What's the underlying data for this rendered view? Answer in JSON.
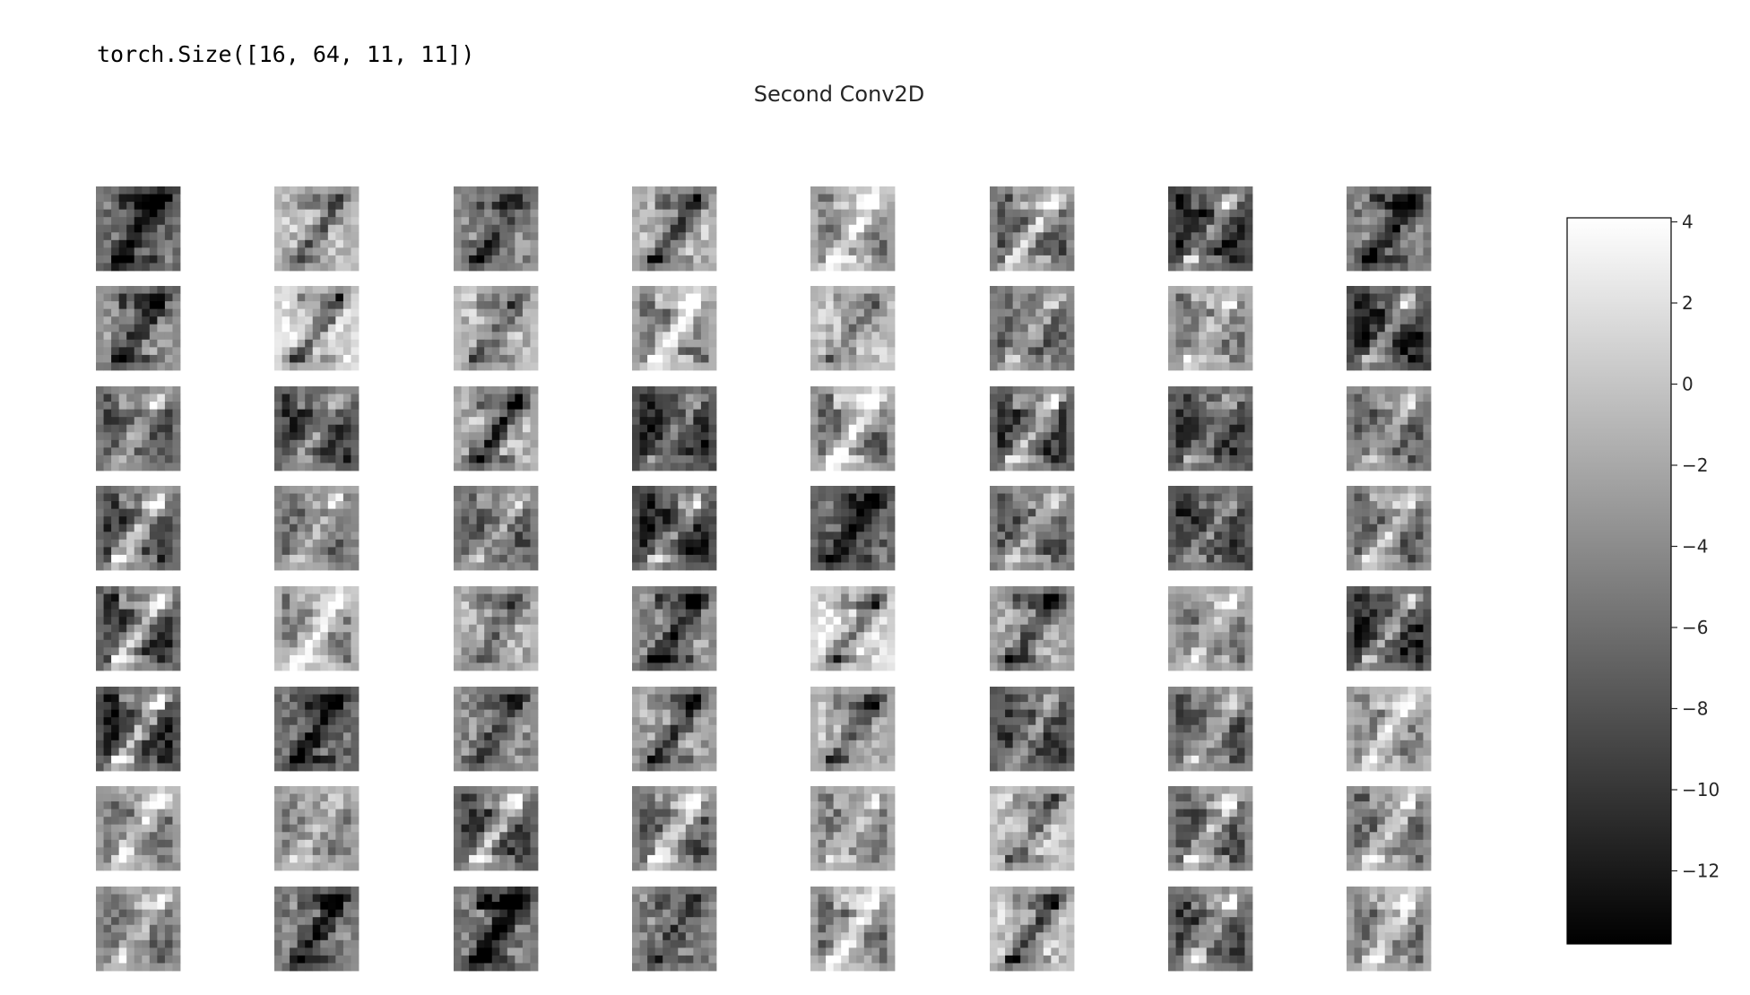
{
  "output": {
    "shape_text": "torch.Size([16, 64, 11, 11])"
  },
  "chart_data": {
    "type": "heatmap",
    "title": "Second Conv2D",
    "grid": {
      "rows": 8,
      "cols": 8,
      "map_size": [
        11,
        11
      ]
    },
    "cmap": "gray",
    "colorbar": {
      "vmin": -13.8,
      "vmax": 4.1,
      "ticks": [
        4,
        2,
        0,
        -2,
        -4,
        -6,
        -8,
        -10,
        -12
      ],
      "tick_labels": [
        "4",
        "2",
        "0",
        "−2",
        "−4",
        "−6",
        "−8",
        "−10",
        "−12"
      ]
    },
    "axes_visible": false
  }
}
